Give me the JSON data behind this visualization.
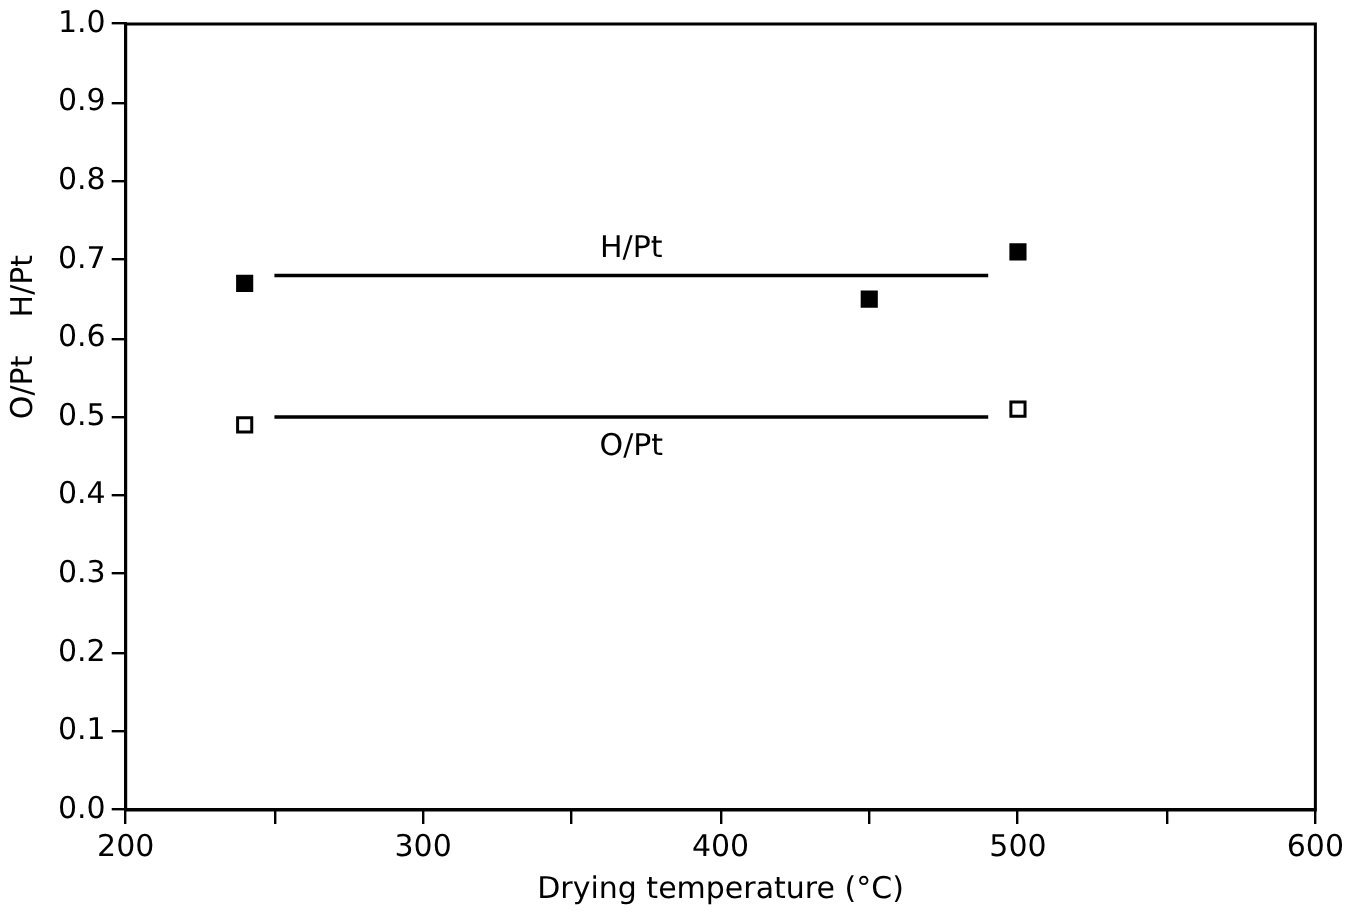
{
  "chart_data": {
    "type": "scatter",
    "xlabel": "Drying temperature (°C)",
    "ylabel": "O/Pt    H/Pt",
    "xlim": [
      200,
      600
    ],
    "xticks": [
      200,
      {
        "value": 250,
        "label": null
      },
      300,
      {
        "value": 350,
        "label": null
      },
      400,
      {
        "value": 450,
        "label": null
      },
      500,
      {
        "value": 550,
        "label": null
      },
      600
    ],
    "ylim": [
      0,
      1
    ],
    "yticks": [
      {
        "value": 0,
        "label": "0.0"
      },
      0.1,
      0.2,
      0.3,
      0.4,
      0.5,
      0.6,
      0.7,
      0.8,
      0.9,
      {
        "value": 1,
        "label": "1.0"
      }
    ],
    "grid": false,
    "legend": false,
    "marker": "square",
    "series": [
      {
        "color": "#000000",
        "x": [
          240,
          450,
          500
        ],
        "values": [
          0.67,
          0.65,
          0.71
        ]
      },
      {
        "color": "#000000",
        "x": [
          240,
          500
        ],
        "values": [
          0.49,
          0.51
        ]
      },
      {
        "type": "line",
        "name": "H/Pt",
        "color": "#000000",
        "x": [
          250,
          490
        ],
        "values": [
          0.68,
          0.68
        ],
        "marker": "none"
      },
      {
        "type": "line",
        "name": "O/Pt",
        "color": "#000000",
        "x": [
          250,
          490
        ],
        "values": [
          0.5,
          0.5
        ],
        "marker": "none"
      }
    ]
  }
}
